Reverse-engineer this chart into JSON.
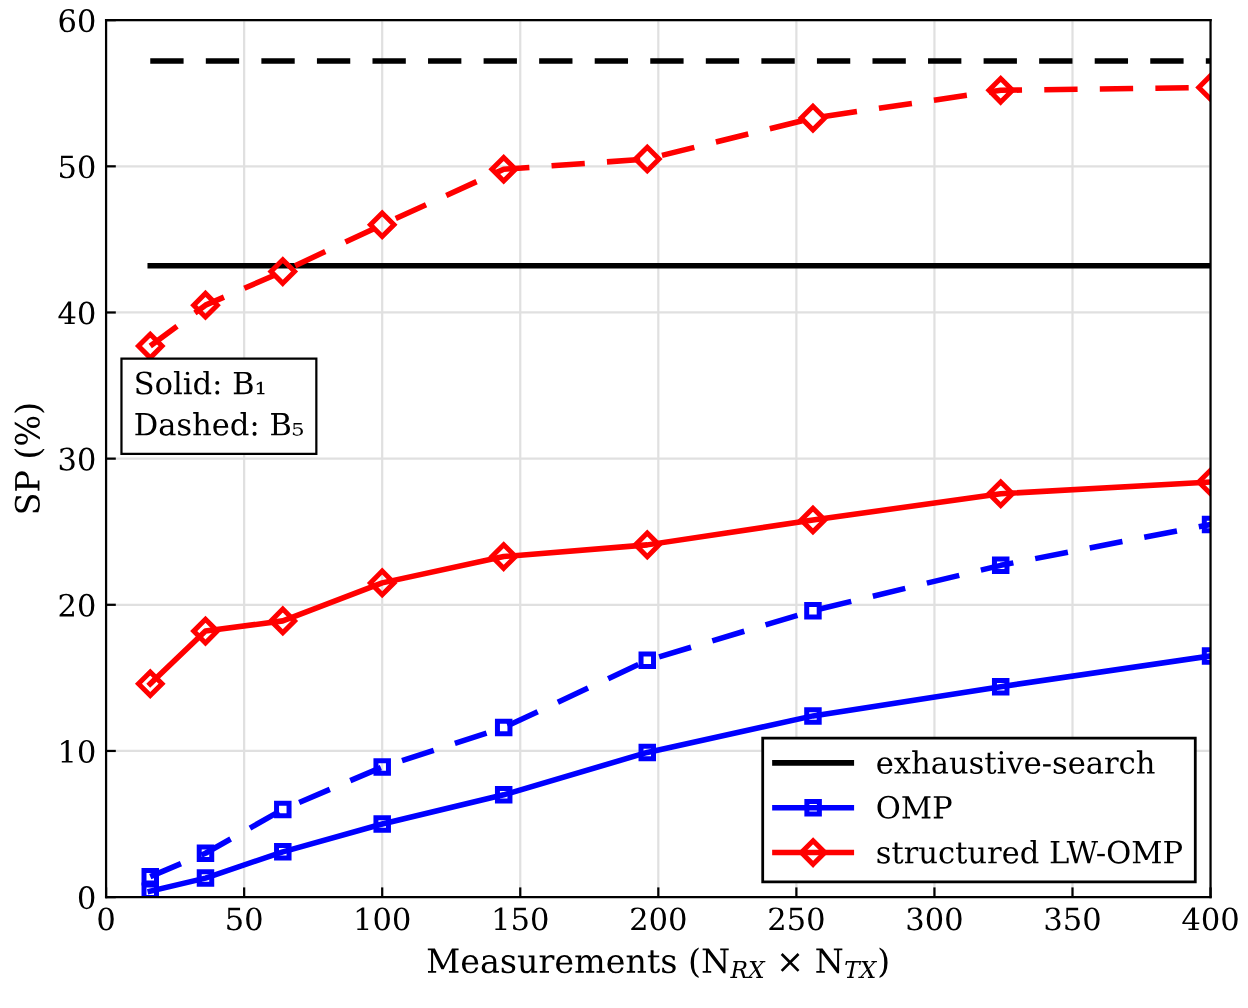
{
  "chart_data": {
    "type": "line",
    "xlabel": "Measurements (N$_{RX}$ × N$_{TX}$)",
    "ylabel": "SP (%)",
    "x": [
      16,
      36,
      64,
      100,
      144,
      196,
      256,
      324,
      400
    ],
    "series": [
      {
        "name": "exhaustive-search",
        "color": "#000000",
        "marker": "none",
        "line_style": "solid",
        "values": [
          43.2,
          43.2,
          43.2,
          43.2,
          43.2,
          43.2,
          43.2,
          43.2,
          43.2
        ]
      },
      {
        "name": "OMP",
        "color": "#0000ff",
        "marker": "square",
        "line_style": "solid",
        "values": [
          0.4,
          1.3,
          3.1,
          5.0,
          7.0,
          9.9,
          12.4,
          14.4,
          16.5
        ]
      },
      {
        "name": "structured LW-OMP",
        "color": "#ff0000",
        "marker": "diamond",
        "line_style": "solid",
        "values": [
          14.6,
          18.2,
          18.9,
          21.5,
          23.3,
          24.1,
          25.8,
          27.6,
          28.4
        ]
      },
      {
        "color": "#000000",
        "marker": "none",
        "line_style": "dashed",
        "values": [
          57.2,
          57.2,
          57.2,
          57.2,
          57.2,
          57.2,
          57.2,
          57.2,
          57.2
        ]
      },
      {
        "color": "#0000ff",
        "marker": "square",
        "line_style": "dashed",
        "values": [
          1.4,
          3.0,
          6.0,
          8.9,
          11.6,
          16.2,
          19.6,
          22.7,
          25.5
        ]
      },
      {
        "color": "#ff0000",
        "marker": "diamond",
        "line_style": "dashed",
        "values": [
          37.7,
          40.5,
          42.8,
          46.0,
          49.8,
          50.5,
          53.3,
          55.2,
          55.4
        ]
      }
    ],
    "annotations": [
      "Solid: B₁\nDashed: B₅"
    ],
    "xlim": [
      0,
      400
    ],
    "xticks": [
      0,
      50,
      100,
      150,
      200,
      250,
      300,
      350,
      400
    ],
    "ylim": [
      0,
      60
    ],
    "yticks": [
      0,
      10,
      20,
      30,
      40,
      50,
      60
    ],
    "grid": true,
    "legend": "bottom right"
  }
}
